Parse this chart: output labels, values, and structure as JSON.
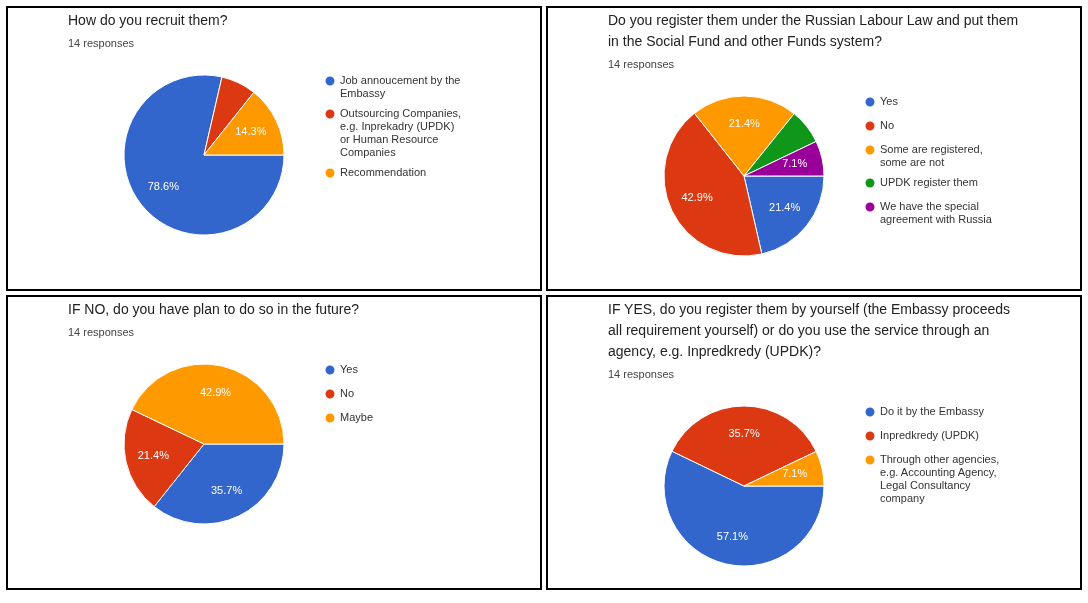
{
  "chart_data": [
    {
      "type": "pie",
      "title": "How do you recruit them?",
      "subtitle": "14 responses",
      "categories": [
        "Job annoucement by the Embassy",
        "Outsourcing Companies, e.g. Inprekadry (UPDK) or Human Resource Companies",
        "Recommendation"
      ],
      "values": [
        78.6,
        7.1,
        14.3
      ],
      "colors": [
        "#3366cc",
        "#dc3912",
        "#ff9900"
      ],
      "value_labels": [
        "78.6%",
        null,
        "14.3%"
      ],
      "legend": "right"
    },
    {
      "type": "pie",
      "title": "Do you register them under the Russian Labour Law and put them in the Social Fund and other Funds system?",
      "subtitle": "14 responses",
      "categories": [
        "Yes",
        "No",
        "Some are registered, some are not",
        "UPDK register them",
        "We have the special agreement with Russia"
      ],
      "values": [
        21.4,
        42.9,
        21.4,
        7.1,
        7.1
      ],
      "colors": [
        "#3366cc",
        "#dc3912",
        "#ff9900",
        "#109618",
        "#990099"
      ],
      "value_labels": [
        "21.4%",
        "42.9%",
        "21.4%",
        null,
        "7.1%"
      ],
      "legend": "right"
    },
    {
      "type": "pie",
      "title": "IF NO, do you have plan to do so in the future?",
      "subtitle": "14 responses",
      "categories": [
        "Yes",
        "No",
        "Maybe"
      ],
      "values": [
        35.7,
        21.4,
        42.9
      ],
      "colors": [
        "#3366cc",
        "#dc3912",
        "#ff9900"
      ],
      "value_labels": [
        "35.7%",
        "21.4%",
        "42.9%"
      ],
      "legend": "right"
    },
    {
      "type": "pie",
      "title": "IF YES, do you register them by yourself (the Embassy proceeds all requirement yourself) or do you use the service through an agency, e.g. Inpredkredy (UPDK)?",
      "subtitle": "14 responses",
      "categories": [
        "Do it by the Embassy",
        "Inpredkredy (UPDK)",
        "Through other agencies, e.g. Accounting Agency, Legal Consultancy company"
      ],
      "values": [
        57.1,
        35.7,
        7.1
      ],
      "colors": [
        "#3366cc",
        "#dc3912",
        "#ff9900"
      ],
      "value_labels": [
        "57.1%",
        "35.7%",
        "7.1%"
      ],
      "legend": "right"
    }
  ]
}
